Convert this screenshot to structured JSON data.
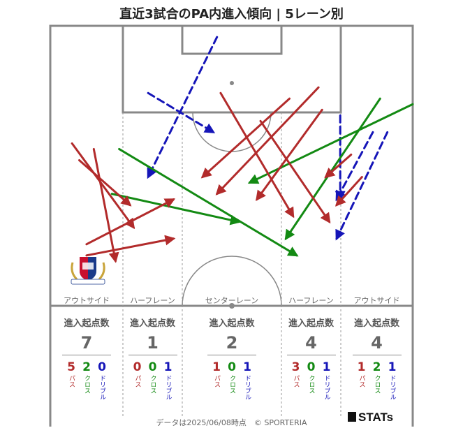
{
  "title": "直近3試合のPA内進入傾向 | 5レーン別",
  "lanes": [
    {
      "label": "アウトサイド",
      "header": "進入起点数",
      "total": "7",
      "pass": "5",
      "cross": "2",
      "dribble": "0"
    },
    {
      "label": "ハーフレーン",
      "header": "進入起点数",
      "total": "1",
      "pass": "0",
      "cross": "0",
      "dribble": "1"
    },
    {
      "label": "センターレーン",
      "header": "進入起点数",
      "total": "2",
      "pass": "1",
      "cross": "0",
      "dribble": "1"
    },
    {
      "label": "ハーフレーン",
      "header": "進入起点数",
      "total": "4",
      "pass": "3",
      "cross": "0",
      "dribble": "1"
    },
    {
      "label": "アウトサイド",
      "header": "進入起点数",
      "total": "4",
      "pass": "1",
      "cross": "2",
      "dribble": "1"
    }
  ],
  "legend": {
    "pass": "パス",
    "cross": "クロス",
    "dribble": "ドリブル"
  },
  "colors": {
    "pass": "#b22b2b",
    "cross": "#138a13",
    "dribble": "#1515b8",
    "pitch_line": "#888888"
  },
  "footer": "データは2025/06/08時点　© SPORTERIA",
  "brand": "STATs",
  "logo_text": "Yokohama F·Marinos",
  "chart_data": {
    "type": "scatter",
    "title": "直近3試合のPA内進入傾向 | 5レーン別",
    "coordinate_system": "pitch length 0-100 (goal line at 100), pitch width 0-100 (left to right)",
    "arrows": [
      {
        "type": "pass",
        "from": [
          39,
          10
        ],
        "to": [
          31,
          34
        ]
      },
      {
        "type": "pass",
        "from": [
          41,
          10
        ],
        "to": [
          38,
          34
        ]
      },
      {
        "type": "pass",
        "from": [
          24,
          8
        ],
        "to": [
          32,
          22
        ]
      },
      {
        "type": "pass",
        "from": [
          21,
          6
        ],
        "to": [
          36,
          23
        ]
      },
      {
        "type": "pass",
        "from": [
          22,
          12
        ],
        "to": [
          42,
          18
        ]
      },
      {
        "type": "pass",
        "from": [
          12,
          47
        ],
        "to": [
          34,
          67
        ]
      },
      {
        "type": "pass",
        "from": [
          11,
          74
        ],
        "to": [
          30,
          46
        ]
      },
      {
        "type": "pass",
        "from": [
          13,
          66
        ],
        "to": [
          27,
          42
        ]
      },
      {
        "type": "pass",
        "from": [
          15,
          75
        ],
        "to": [
          31,
          57
        ]
      },
      {
        "type": "pass",
        "from": [
          17,
          58
        ],
        "to": [
          35,
          77
        ]
      },
      {
        "type": "pass",
        "from": [
          27,
          86
        ],
        "to": [
          32,
          79
        ]
      },
      {
        "type": "pass",
        "from": [
          23,
          83
        ],
        "to": [
          27,
          76
        ]
      },
      {
        "type": "cross",
        "from": [
          22,
          19
        ],
        "to": [
          41,
          68
        ]
      },
      {
        "type": "cross",
        "from": [
          14,
          100
        ],
        "to": [
          28,
          55
        ]
      },
      {
        "type": "cross",
        "from": [
          30,
          17
        ],
        "to": [
          35,
          52
        ]
      },
      {
        "type": "cross",
        "from": [
          13,
          91
        ],
        "to": [
          38,
          65
        ]
      },
      {
        "type": "dribble",
        "from": [
          2,
          46
        ],
        "to": [
          27,
          27
        ]
      },
      {
        "type": "dribble",
        "from": [
          12,
          27
        ],
        "to": [
          19,
          45
        ]
      },
      {
        "type": "dribble",
        "from": [
          16,
          80
        ],
        "to": [
          31,
          80
        ]
      },
      {
        "type": "dribble",
        "from": [
          19,
          89
        ],
        "to": [
          31,
          79
        ]
      },
      {
        "type": "dribble",
        "from": [
          19,
          93
        ],
        "to": [
          38,
          79
        ]
      }
    ]
  }
}
